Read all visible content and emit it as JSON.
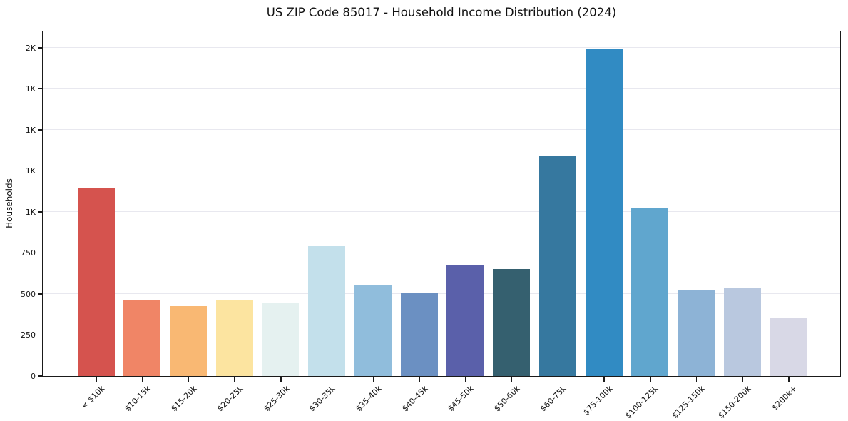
{
  "chart_data": {
    "type": "bar",
    "title": "US ZIP Code 85017 - Household Income Distribution (2024)",
    "xlabel": "",
    "ylabel": "Households",
    "categories": [
      "< $10k",
      "$10-15k",
      "$15-20k",
      "$20-25k",
      "$25-30k",
      "$30-35k",
      "$35-40k",
      "$40-45k",
      "$45-50k",
      "$50-60k",
      "$60-75k",
      "$75-100k",
      "$100-125k",
      "$125-150k",
      "$150-200k",
      "$200k+"
    ],
    "values": [
      1145,
      460,
      425,
      465,
      445,
      790,
      550,
      505,
      670,
      650,
      1340,
      1990,
      1025,
      525,
      535,
      350
    ],
    "bar_colors": [
      "#d5534e",
      "#f08566",
      "#f9b873",
      "#fce4a0",
      "#e5f1f0",
      "#c3e0eb",
      "#90bddc",
      "#6b90c2",
      "#5a60aa",
      "#35606f",
      "#36789f",
      "#318bc3",
      "#60a6ce",
      "#8db3d6",
      "#b9c8df",
      "#d8d8e6"
    ],
    "ylim": [
      0,
      2100
    ],
    "yticks": [
      {
        "value": 0,
        "label": "0"
      },
      {
        "value": 250,
        "label": "250"
      },
      {
        "value": 500,
        "label": "500"
      },
      {
        "value": 750,
        "label": "750"
      },
      {
        "value": 1000,
        "label": "1K"
      },
      {
        "value": 1250,
        "label": "1K"
      },
      {
        "value": 1500,
        "label": "1K"
      },
      {
        "value": 1750,
        "label": "1K"
      },
      {
        "value": 2000,
        "label": "2K"
      }
    ],
    "grid": "horizontal",
    "legend": "none",
    "colors": {
      "background": "#ffffff",
      "gridline": "#e8e8ef",
      "spine": "#1a1a1a",
      "text": "#111111"
    }
  }
}
